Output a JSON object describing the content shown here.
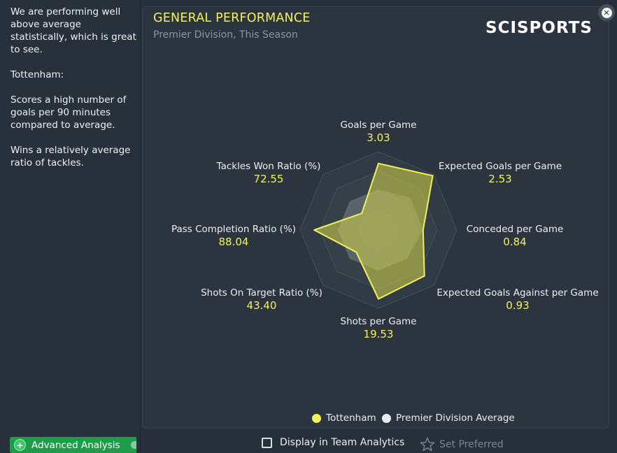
{
  "sidebar": {
    "paragraphs": [
      "We are performing well above average statistically, which is great to see.",
      "Tottenham:",
      "Scores a high number of goals per 90 minutes compared to average.",
      "Wins a relatively average ratio of tackles."
    ],
    "advanced_label": "Advanced Analysis"
  },
  "card": {
    "title": "GENERAL PERFORMANCE",
    "subtitle": "Premier Division, This Season",
    "logo_text": "SCISPORTS"
  },
  "chart_data": {
    "type": "radar",
    "axes": [
      {
        "label": "Goals per Game",
        "value": "3.03"
      },
      {
        "label": "Expected Goals per Game",
        "value": "2.53"
      },
      {
        "label": "Conceded per Game",
        "value": "0.84"
      },
      {
        "label": "Expected Goals Against per Game",
        "value": "0.93"
      },
      {
        "label": "Shots per Game",
        "value": "19.53"
      },
      {
        "label": "Shots On Target Ratio (%)",
        "value": "43.40"
      },
      {
        "label": "Pass Completion Ratio (%)",
        "value": "88.04"
      },
      {
        "label": "Tackles Won Ratio (%)",
        "value": "72.55"
      }
    ],
    "series": [
      {
        "name": "Tottenham",
        "color": "#f0f05a",
        "relative": [
          0.85,
          0.98,
          0.57,
          0.83,
          0.88,
          0.4,
          0.82,
          0.3
        ]
      },
      {
        "name": "Premier Division Average",
        "color": "#e8ecef",
        "relative": [
          0.52,
          0.58,
          0.57,
          0.52,
          0.52,
          0.52,
          0.52,
          0.52
        ]
      }
    ],
    "rings": 4
  },
  "legend": {
    "tottenham": "Tottenham",
    "average": "Premier Division Average"
  },
  "footer": {
    "display_label": "Display in Team Analytics",
    "set_preferred": "Set Preferred"
  },
  "colors": {
    "accent": "#f2f25a",
    "advanced_green": "#1f9c4a"
  }
}
